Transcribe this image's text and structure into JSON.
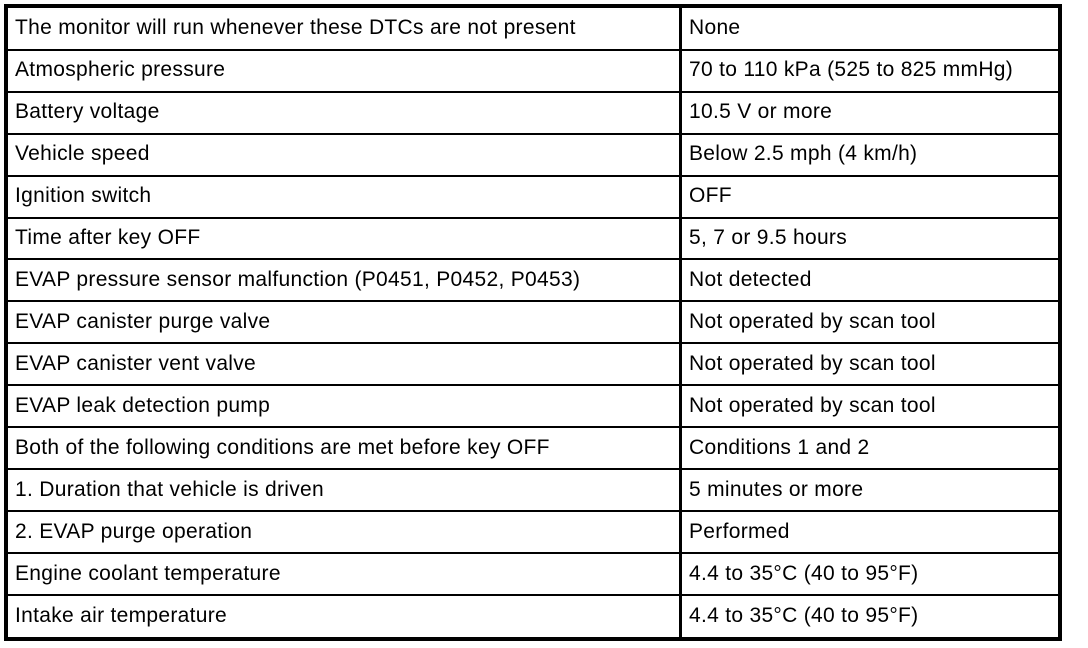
{
  "page": {
    "background_color": "#ffffff"
  },
  "table": {
    "border_color": "#000000",
    "text_color": "#000000",
    "rows": [
      {
        "item": "The monitor will run whenever these DTCs are not present",
        "value": "None"
      },
      {
        "item": "Atmospheric pressure",
        "value": "70 to 110 kPa (525 to 825 mmHg)"
      },
      {
        "item": "Battery voltage",
        "value": "10.5 V or more"
      },
      {
        "item": "Vehicle speed",
        "value": "Below 2.5 mph (4 km/h)"
      },
      {
        "item": "Ignition switch",
        "value": "OFF"
      },
      {
        "item": "Time after key OFF",
        "value": "5, 7 or 9.5 hours"
      },
      {
        "item": "EVAP pressure sensor malfunction (P0451, P0452, P0453)",
        "value": "Not detected"
      },
      {
        "item": "EVAP canister purge valve",
        "value": "Not operated by scan tool"
      },
      {
        "item": "EVAP canister vent valve",
        "value": "Not operated by scan tool"
      },
      {
        "item": "EVAP leak detection pump",
        "value": "Not operated by scan tool"
      },
      {
        "item": "Both of the following conditions are met before key OFF",
        "value": "Conditions 1 and 2"
      },
      {
        "item": "1. Duration that vehicle is driven",
        "value": "5 minutes or more"
      },
      {
        "item": "2. EVAP purge operation",
        "value": "Performed"
      },
      {
        "item": "Engine coolant temperature",
        "value": "4.4 to 35°C (40 to 95°F)"
      },
      {
        "item": "Intake air temperature",
        "value": "4.4 to 35°C (40 to 95°F)"
      }
    ]
  }
}
